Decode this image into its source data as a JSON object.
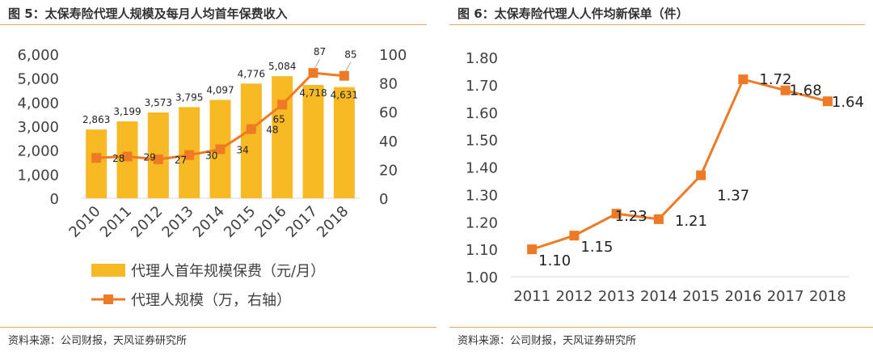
{
  "colors": {
    "bar": "#f7b924",
    "line": "#ef7a26",
    "rule": "#e9a46a",
    "text": "#404040"
  },
  "charts": [
    {
      "figure_title": "图 5：太保寿险代理人规模及每月人均首年保费收入",
      "source": "资料来源：公司财报，天风证券研究所",
      "y_left_ticks": [
        "6,000",
        "5,000",
        "4,000",
        "3,000",
        "2,000",
        "1,000",
        "0"
      ],
      "y_right_ticks": [
        "100",
        "80",
        "60",
        "40",
        "20",
        "0"
      ],
      "legend": {
        "bars": "代理人首年规模保费（元/月）",
        "line": "代理人规模（万，右轴）"
      }
    },
    {
      "figure_title": "图 6：太保寿险代理人人件均新保单（件）",
      "source": "资料来源：公司财报，天风证券研究所",
      "y_ticks": [
        "1.80",
        "1.70",
        "1.60",
        "1.50",
        "1.40",
        "1.30",
        "1.20",
        "1.10",
        "1.00"
      ]
    }
  ],
  "chart_data": [
    {
      "type": "bar",
      "title": "太保寿险代理人规模及每月人均首年保费收入",
      "categories": [
        "2010",
        "2011",
        "2012",
        "2013",
        "2014",
        "2015",
        "2016",
        "2017",
        "2018"
      ],
      "series": [
        {
          "name": "代理人首年规模保费（元/月）",
          "type": "bar",
          "axis": "left",
          "values": [
            2863,
            3199,
            3573,
            3795,
            4097,
            4776,
            5084,
            4718,
            4631
          ],
          "labels": [
            "2,863",
            "3,199",
            "3,573",
            "3,795",
            "4,097",
            "4,776",
            "5,084",
            "4,718",
            "4,631"
          ]
        },
        {
          "name": "代理人规模（万，右轴）",
          "type": "line",
          "axis": "right",
          "values": [
            28,
            29,
            27,
            30,
            34,
            48,
            65,
            87,
            85
          ],
          "labels": [
            "28",
            "29",
            "27",
            "30",
            "34",
            "48",
            "65",
            "87",
            "85"
          ]
        }
      ],
      "ylim_left": [
        0,
        6000
      ],
      "ylim_right": [
        0,
        100
      ],
      "legend": "bottom"
    },
    {
      "type": "line",
      "title": "太保寿险代理人人件均新保单（件）",
      "categories": [
        "2011",
        "2012",
        "2013",
        "2014",
        "2015",
        "2016",
        "2017",
        "2018"
      ],
      "series": [
        {
          "name": "人件均新保单（件）",
          "values": [
            1.1,
            1.15,
            1.23,
            1.21,
            1.37,
            1.72,
            1.68,
            1.64
          ],
          "labels": [
            "1.10",
            "1.15",
            "1.23",
            "1.21",
            "1.37",
            "1.72",
            "1.68",
            "1.64"
          ]
        }
      ],
      "ylim": [
        1.0,
        1.8
      ]
    }
  ]
}
